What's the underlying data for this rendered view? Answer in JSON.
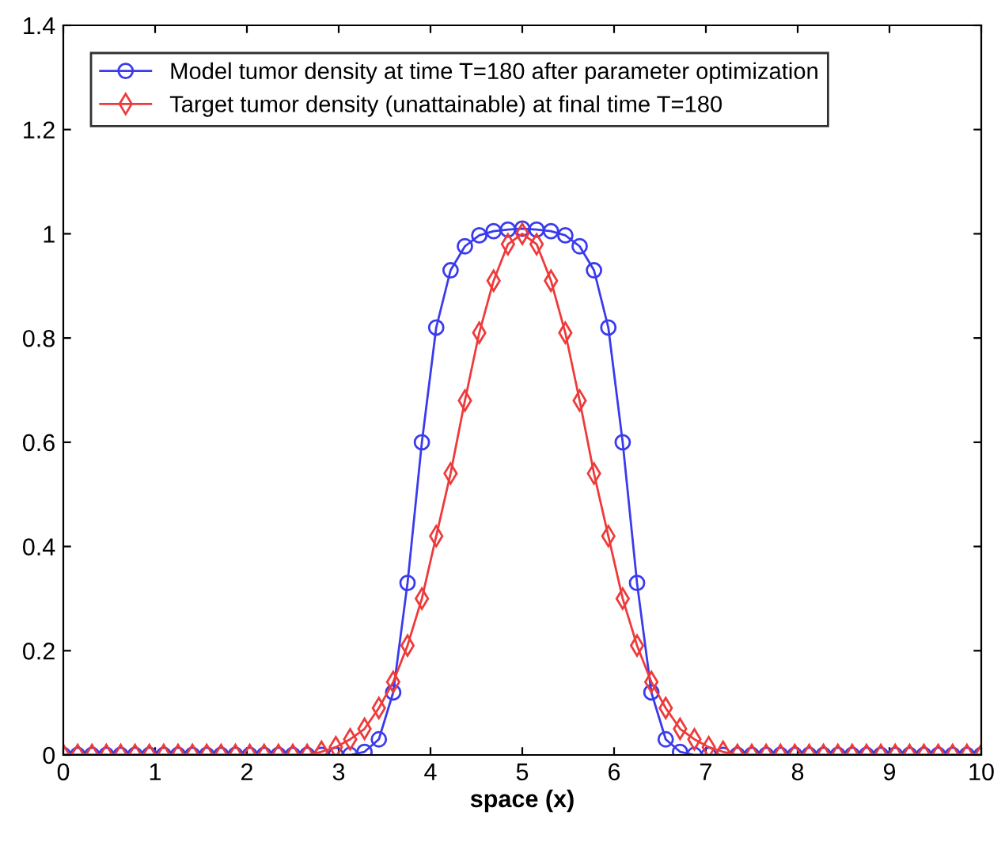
{
  "chart_data": {
    "type": "line",
    "xlabel": "space (x)",
    "x": [
      0,
      0.15625,
      0.3125,
      0.46875,
      0.625,
      0.78125,
      0.9375,
      1.09375,
      1.25,
      1.40625,
      1.5625,
      1.71875,
      1.875,
      2.03125,
      2.1875,
      2.34375,
      2.5,
      2.65625,
      2.8125,
      2.96875,
      3.125,
      3.28125,
      3.4375,
      3.59375,
      3.75,
      3.90625,
      4.0625,
      4.21875,
      4.375,
      4.53125,
      4.6875,
      4.84375,
      5,
      5.15625,
      5.3125,
      5.46875,
      5.625,
      5.78125,
      5.9375,
      6.09375,
      6.25,
      6.40625,
      6.5625,
      6.71875,
      6.875,
      7.03125,
      7.1875,
      7.34375,
      7.5,
      7.65625,
      7.8125,
      7.96875,
      8.125,
      8.28125,
      8.4375,
      8.59375,
      8.75,
      8.90625,
      9.0625,
      9.21875,
      9.375,
      9.53125,
      9.6875,
      9.84375,
      10
    ],
    "series": [
      {
        "name": "Model tumor density at time T=180 after parameter optimization",
        "color": "#3a3aee",
        "marker": "circle",
        "values": [
          0,
          0,
          0,
          0,
          0,
          0,
          0,
          0,
          0,
          0,
          0,
          0,
          0,
          0,
          0,
          0,
          0,
          0,
          0,
          0,
          0,
          0.006,
          0.03,
          0.12,
          0.33,
          0.6,
          0.82,
          0.93,
          0.976,
          0.997,
          1.005,
          1.008,
          1.01,
          1.008,
          1.005,
          0.997,
          0.976,
          0.93,
          0.82,
          0.6,
          0.33,
          0.12,
          0.03,
          0.006,
          0,
          0,
          0,
          0,
          0,
          0,
          0,
          0,
          0,
          0,
          0,
          0,
          0,
          0,
          0,
          0,
          0,
          0,
          0,
          0,
          0
        ]
      },
      {
        "name": "Target tumor density (unattainable) at final time T=180",
        "color": "#ee3a3a",
        "marker": "diamond",
        "values": [
          0,
          0,
          0,
          0,
          0,
          0,
          0,
          0,
          0,
          0,
          0,
          0,
          0,
          0,
          0,
          0,
          0,
          0,
          0.006,
          0.015,
          0.03,
          0.05,
          0.09,
          0.14,
          0.21,
          0.3,
          0.42,
          0.54,
          0.68,
          0.81,
          0.91,
          0.98,
          1.0,
          0.98,
          0.91,
          0.81,
          0.68,
          0.54,
          0.42,
          0.3,
          0.21,
          0.14,
          0.09,
          0.05,
          0.03,
          0.015,
          0.006,
          0,
          0,
          0,
          0,
          0,
          0,
          0,
          0,
          0,
          0,
          0,
          0,
          0,
          0,
          0,
          0,
          0,
          0
        ]
      }
    ],
    "xlim": [
      0,
      10
    ],
    "xticks": [
      0,
      1,
      2,
      3,
      4,
      5,
      6,
      7,
      8,
      9,
      10
    ],
    "ylim": [
      0,
      1.4
    ],
    "yticks": [
      0,
      0.2,
      0.4,
      0.6,
      0.8,
      1,
      1.2,
      1.4
    ],
    "legend": "top left",
    "grid": false,
    "line_style": "solid"
  }
}
